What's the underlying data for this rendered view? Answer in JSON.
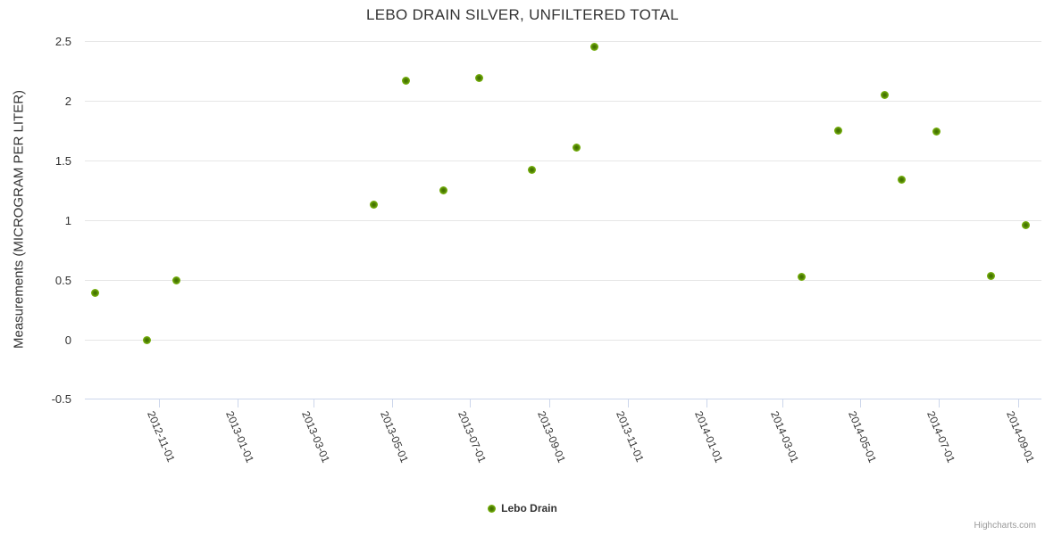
{
  "chart": {
    "credits_label": "Highcharts.com"
  },
  "chart_data": {
    "type": "scatter",
    "title": "LEBO DRAIN SILVER, UNFILTERED TOTAL",
    "xlabel": "",
    "ylabel": "Measurements (MICROGRAM PER LITER)",
    "ylim": [
      -0.5,
      2.5
    ],
    "y_ticks": [
      "2.5",
      "2",
      "1.5",
      "1",
      "0.5",
      "0",
      "-0.5"
    ],
    "x_range": [
      "2012-09-04",
      "2014-09-19"
    ],
    "x_ticks": [
      "2012-11-01",
      "2013-01-01",
      "2013-03-01",
      "2013-05-01",
      "2013-07-01",
      "2013-09-01",
      "2013-11-01",
      "2014-01-01",
      "2014-03-01",
      "2014-05-01",
      "2014-07-01",
      "2014-09-01"
    ],
    "grid": "horizontal-only",
    "legend_position": "bottom-center",
    "axis_color": "#ccd6eb",
    "grid_color": "#e6e6e6",
    "series": [
      {
        "name": "Lebo Drain",
        "color": "#7ab400",
        "points": [
          {
            "date": "2012-09-12",
            "value": 0.39
          },
          {
            "date": "2012-10-22",
            "value": -0.01
          },
          {
            "date": "2012-11-14",
            "value": 0.49
          },
          {
            "date": "2013-04-17",
            "value": 1.13
          },
          {
            "date": "2013-05-12",
            "value": 2.17
          },
          {
            "date": "2013-06-10",
            "value": 1.25
          },
          {
            "date": "2013-07-08",
            "value": 2.19
          },
          {
            "date": "2013-08-18",
            "value": 1.42
          },
          {
            "date": "2013-09-22",
            "value": 1.61
          },
          {
            "date": "2013-10-06",
            "value": 2.45
          },
          {
            "date": "2014-03-16",
            "value": 0.52
          },
          {
            "date": "2014-04-14",
            "value": 1.75
          },
          {
            "date": "2014-05-20",
            "value": 2.05
          },
          {
            "date": "2014-06-02",
            "value": 1.34
          },
          {
            "date": "2014-06-29",
            "value": 1.74
          },
          {
            "date": "2014-08-11",
            "value": 0.53
          },
          {
            "date": "2014-09-07",
            "value": 0.96
          }
        ]
      }
    ]
  }
}
